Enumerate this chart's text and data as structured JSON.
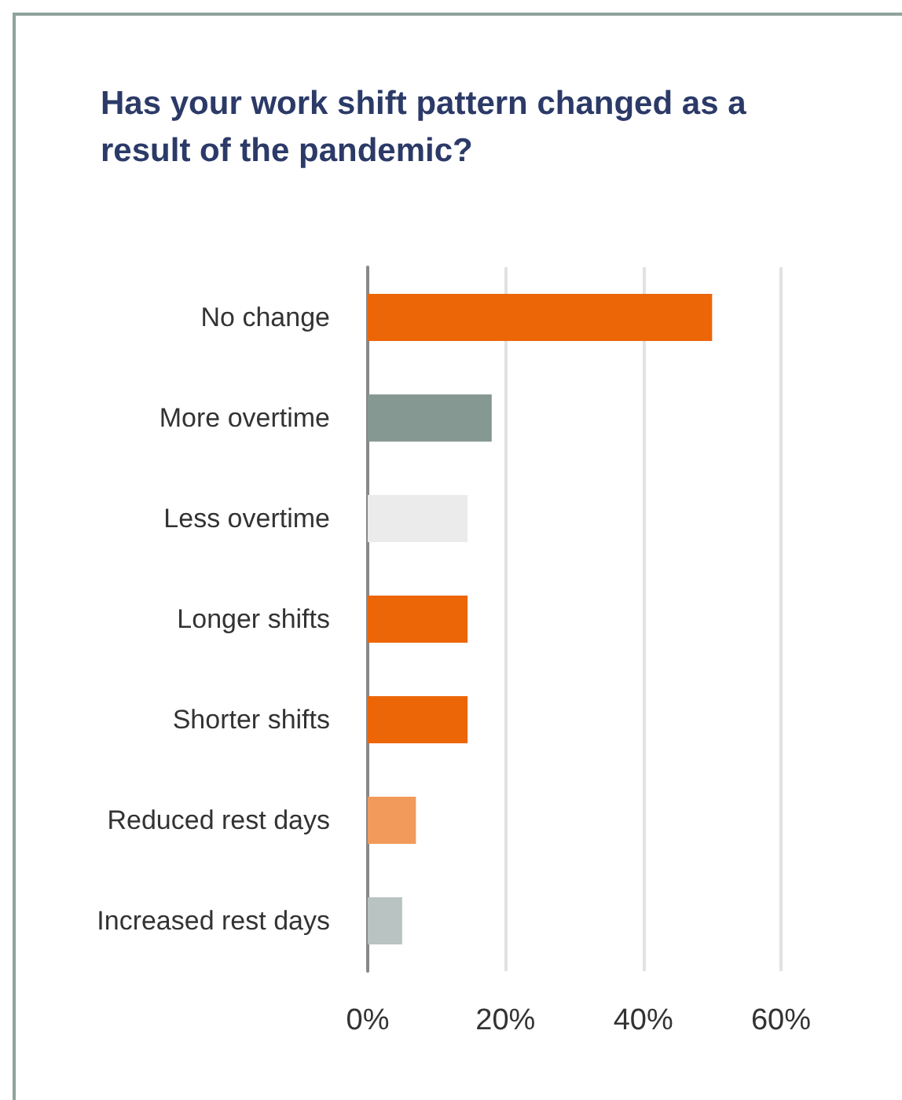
{
  "chart_data": {
    "type": "bar",
    "orientation": "horizontal",
    "title": "Has your work shift pattern changed as a result of the pandemic?",
    "categories": [
      "No change",
      "More overtime",
      "Less overtime",
      "Longer shifts",
      "Shorter shifts",
      "Reduced rest days",
      "Increased rest days"
    ],
    "values": [
      50,
      18,
      14.5,
      14.5,
      14.5,
      7,
      5
    ],
    "colors": [
      "#ec6608",
      "#869892",
      "#ebebeb",
      "#ec6608",
      "#ec6608",
      "#f29a5c",
      "#b9c3c1"
    ],
    "xlim": [
      0,
      60
    ],
    "xticks": [
      {
        "value": 0,
        "label": "0%"
      },
      {
        "value": 20,
        "label": "20%"
      },
      {
        "value": 40,
        "label": "40%"
      },
      {
        "value": 60,
        "label": "60%"
      }
    ],
    "grid": "x"
  }
}
